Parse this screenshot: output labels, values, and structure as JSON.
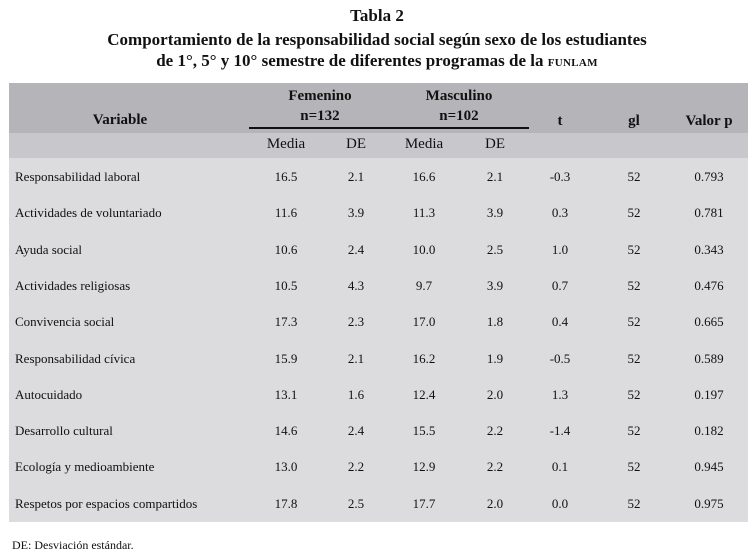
{
  "caption": {
    "line1": "Tabla 2",
    "line2": "Comportamiento de la responsabilidad social según sexo de los estudiantes",
    "line3_prefix": "de 1°, 5° y 10° semestre de diferentes programas de la",
    "line3_smallcaps": "FUNLAM"
  },
  "header": {
    "variable": "Variable",
    "femenino": "Femenino",
    "femenino_n": "n=132",
    "masculino": "Masculino",
    "masculino_n": "n=102",
    "t": "t",
    "gl": "gl",
    "valor_p": "Valor p",
    "media_f": "Media",
    "de_f": "DE",
    "media_m": "Media",
    "de_m": "DE"
  },
  "rows": [
    {
      "variable": "Responsabilidad laboral",
      "media_f": "16.5",
      "de_f": "2.1",
      "media_m": "16.6",
      "de_m": "2.1",
      "t": "-0.3",
      "gl": "52",
      "p": "0.793"
    },
    {
      "variable": "Actividades de voluntariado",
      "media_f": "11.6",
      "de_f": "3.9",
      "media_m": "11.3",
      "de_m": "3.9",
      "t": "0.3",
      "gl": "52",
      "p": "0.781"
    },
    {
      "variable": "Ayuda social",
      "media_f": "10.6",
      "de_f": "2.4",
      "media_m": "10.0",
      "de_m": "2.5",
      "t": "1.0",
      "gl": "52",
      "p": "0.343"
    },
    {
      "variable": "Actividades religiosas",
      "media_f": "10.5",
      "de_f": "4.3",
      "media_m": "9.7",
      "de_m": "3.9",
      "t": "0.7",
      "gl": "52",
      "p": "0.476"
    },
    {
      "variable": "Convivencia social",
      "media_f": "17.3",
      "de_f": "2.3",
      "media_m": "17.0",
      "de_m": "1.8",
      "t": "0.4",
      "gl": "52",
      "p": "0.665"
    },
    {
      "variable": "Responsabilidad cívica",
      "media_f": "15.9",
      "de_f": "2.1",
      "media_m": "16.2",
      "de_m": "1.9",
      "t": "-0.5",
      "gl": "52",
      "p": "0.589"
    },
    {
      "variable": "Autocuidado",
      "media_f": "13.1",
      "de_f": "1.6",
      "media_m": "12.4",
      "de_m": "2.0",
      "t": "1.3",
      "gl": "52",
      "p": "0.197"
    },
    {
      "variable": "Desarrollo cultural",
      "media_f": "14.6",
      "de_f": "2.4",
      "media_m": "15.5",
      "de_m": "2.2",
      "t": "-1.4",
      "gl": "52",
      "p": "0.182"
    },
    {
      "variable": "Ecología y medioambiente",
      "media_f": "13.0",
      "de_f": "2.2",
      "media_m": "12.9",
      "de_m": "2.2",
      "t": "0.1",
      "gl": "52",
      "p": "0.945"
    },
    {
      "variable": "Respetos por espacios compartidos",
      "media_f": "17.8",
      "de_f": "2.5",
      "media_m": "17.7",
      "de_m": "2.0",
      "t": "0.0",
      "gl": "52",
      "p": "0.975"
    }
  ],
  "footnote": "DE: Desviación estándar.",
  "colors": {
    "header_bg": "#b5b5b9",
    "subheader_bg": "#c8c8cc",
    "body_bg": "#dcdcde"
  }
}
